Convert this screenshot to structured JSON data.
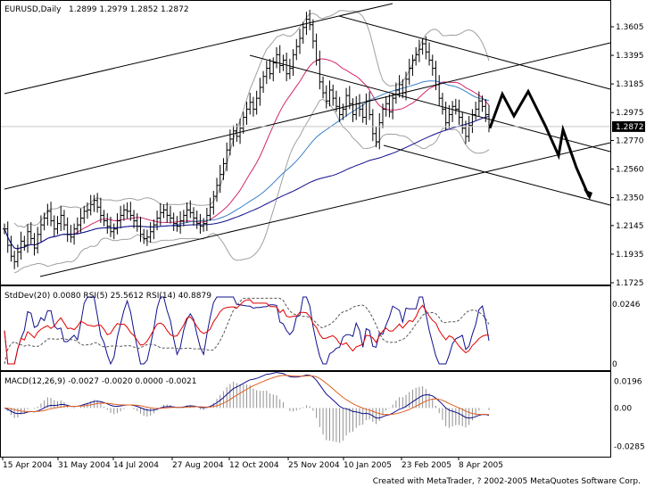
{
  "chart_data": {
    "type": "line",
    "symbol_header": "EURUSD,Daily",
    "ohlc_header": "1.2899 1.2979 1.2852 1.2872",
    "current_price": 1.2872,
    "ylim": [
      1.1725,
      1.372
    ],
    "price_ticks": [
      "1.3605",
      "1.3395",
      "1.3185",
      "1.2975",
      "1.2770",
      "1.2560",
      "1.2350",
      "1.2145",
      "1.1935",
      "1.1725"
    ],
    "x_tick_labels": [
      "15 Apr 2004",
      "31 May 2004",
      "14 Jul 2004",
      "27 Aug 2004",
      "12 Oct 2004",
      "25 Nov 2004",
      "10 Jan 2005",
      "23 Feb 2005",
      "8 Apr 2005"
    ],
    "closes": [
      1.212,
      1.2,
      1.192,
      1.188,
      1.195,
      1.203,
      1.2,
      1.21,
      1.205,
      1.198,
      1.208,
      1.215,
      1.22,
      1.225,
      1.218,
      1.212,
      1.216,
      1.222,
      1.215,
      1.208,
      1.206,
      1.212,
      1.215,
      1.22,
      1.225,
      1.226,
      1.23,
      1.233,
      1.228,
      1.222,
      1.218,
      1.214,
      1.21,
      1.212,
      1.218,
      1.222,
      1.226,
      1.225,
      1.222,
      1.218,
      1.214,
      1.208,
      1.205,
      1.206,
      1.21,
      1.215,
      1.22,
      1.224,
      1.226,
      1.222,
      1.22,
      1.216,
      1.214,
      1.218,
      1.222,
      1.226,
      1.224,
      1.22,
      1.216,
      1.214,
      1.216,
      1.222,
      1.228,
      1.236,
      1.244,
      1.252,
      1.26,
      1.27,
      1.278,
      1.284,
      1.28,
      1.286,
      1.294,
      1.3,
      1.305,
      1.3,
      1.308,
      1.316,
      1.324,
      1.33,
      1.326,
      1.334,
      1.34,
      1.332,
      1.336,
      1.326,
      1.33,
      1.34,
      1.346,
      1.352,
      1.36,
      1.366,
      1.362,
      1.35,
      1.336,
      1.32,
      1.312,
      1.306,
      1.314,
      1.308,
      1.302,
      1.296,
      1.3,
      1.31,
      1.304,
      1.296,
      1.304,
      1.3,
      1.294,
      1.306,
      1.296,
      1.282,
      1.276,
      1.29,
      1.3,
      1.304,
      1.298,
      1.308,
      1.314,
      1.318,
      1.312,
      1.322,
      1.33,
      1.336,
      1.34,
      1.344,
      1.348,
      1.342,
      1.336,
      1.33,
      1.318,
      1.308,
      1.3,
      1.29,
      1.296,
      1.302,
      1.3,
      1.294,
      1.286,
      1.28,
      1.288,
      1.296,
      1.3,
      1.306,
      1.302,
      1.296,
      1.287
    ],
    "zigzag_forecast": [
      1.286,
      1.311,
      1.295,
      1.313,
      1.288,
      1.266,
      1.285,
      1.257,
      1.236
    ],
    "stddev_panel": {
      "header": "StdDev(20) 0.0080  RSI(5) 25.5612  RSI(14) 40.8879",
      "ticks": [
        "0.0246",
        "0"
      ],
      "ylim": [
        0,
        0.0275
      ]
    },
    "macd_panel": {
      "header": "MACD(12,26,9) -0.0027 -0.0020 0.0000 -0.0021",
      "ticks": [
        "0.0196",
        "0.00",
        "-0.0285"
      ],
      "ylim": [
        -0.032,
        0.022
      ]
    },
    "footer": "Created with MetaTrader, ? 2002-2005 MetaQuotes Software Corp.",
    "colors": {
      "price": "#000000",
      "ma_fast": "#d4266e",
      "ma_mid": "#3a7fc6",
      "ma_slow": "#10108c",
      "bands": "#a0a0a0",
      "rsi5": "#10108c",
      "rsi14": "#e00000",
      "macd": "#10108c",
      "signal": "#e06020",
      "hist": "#909090"
    }
  }
}
